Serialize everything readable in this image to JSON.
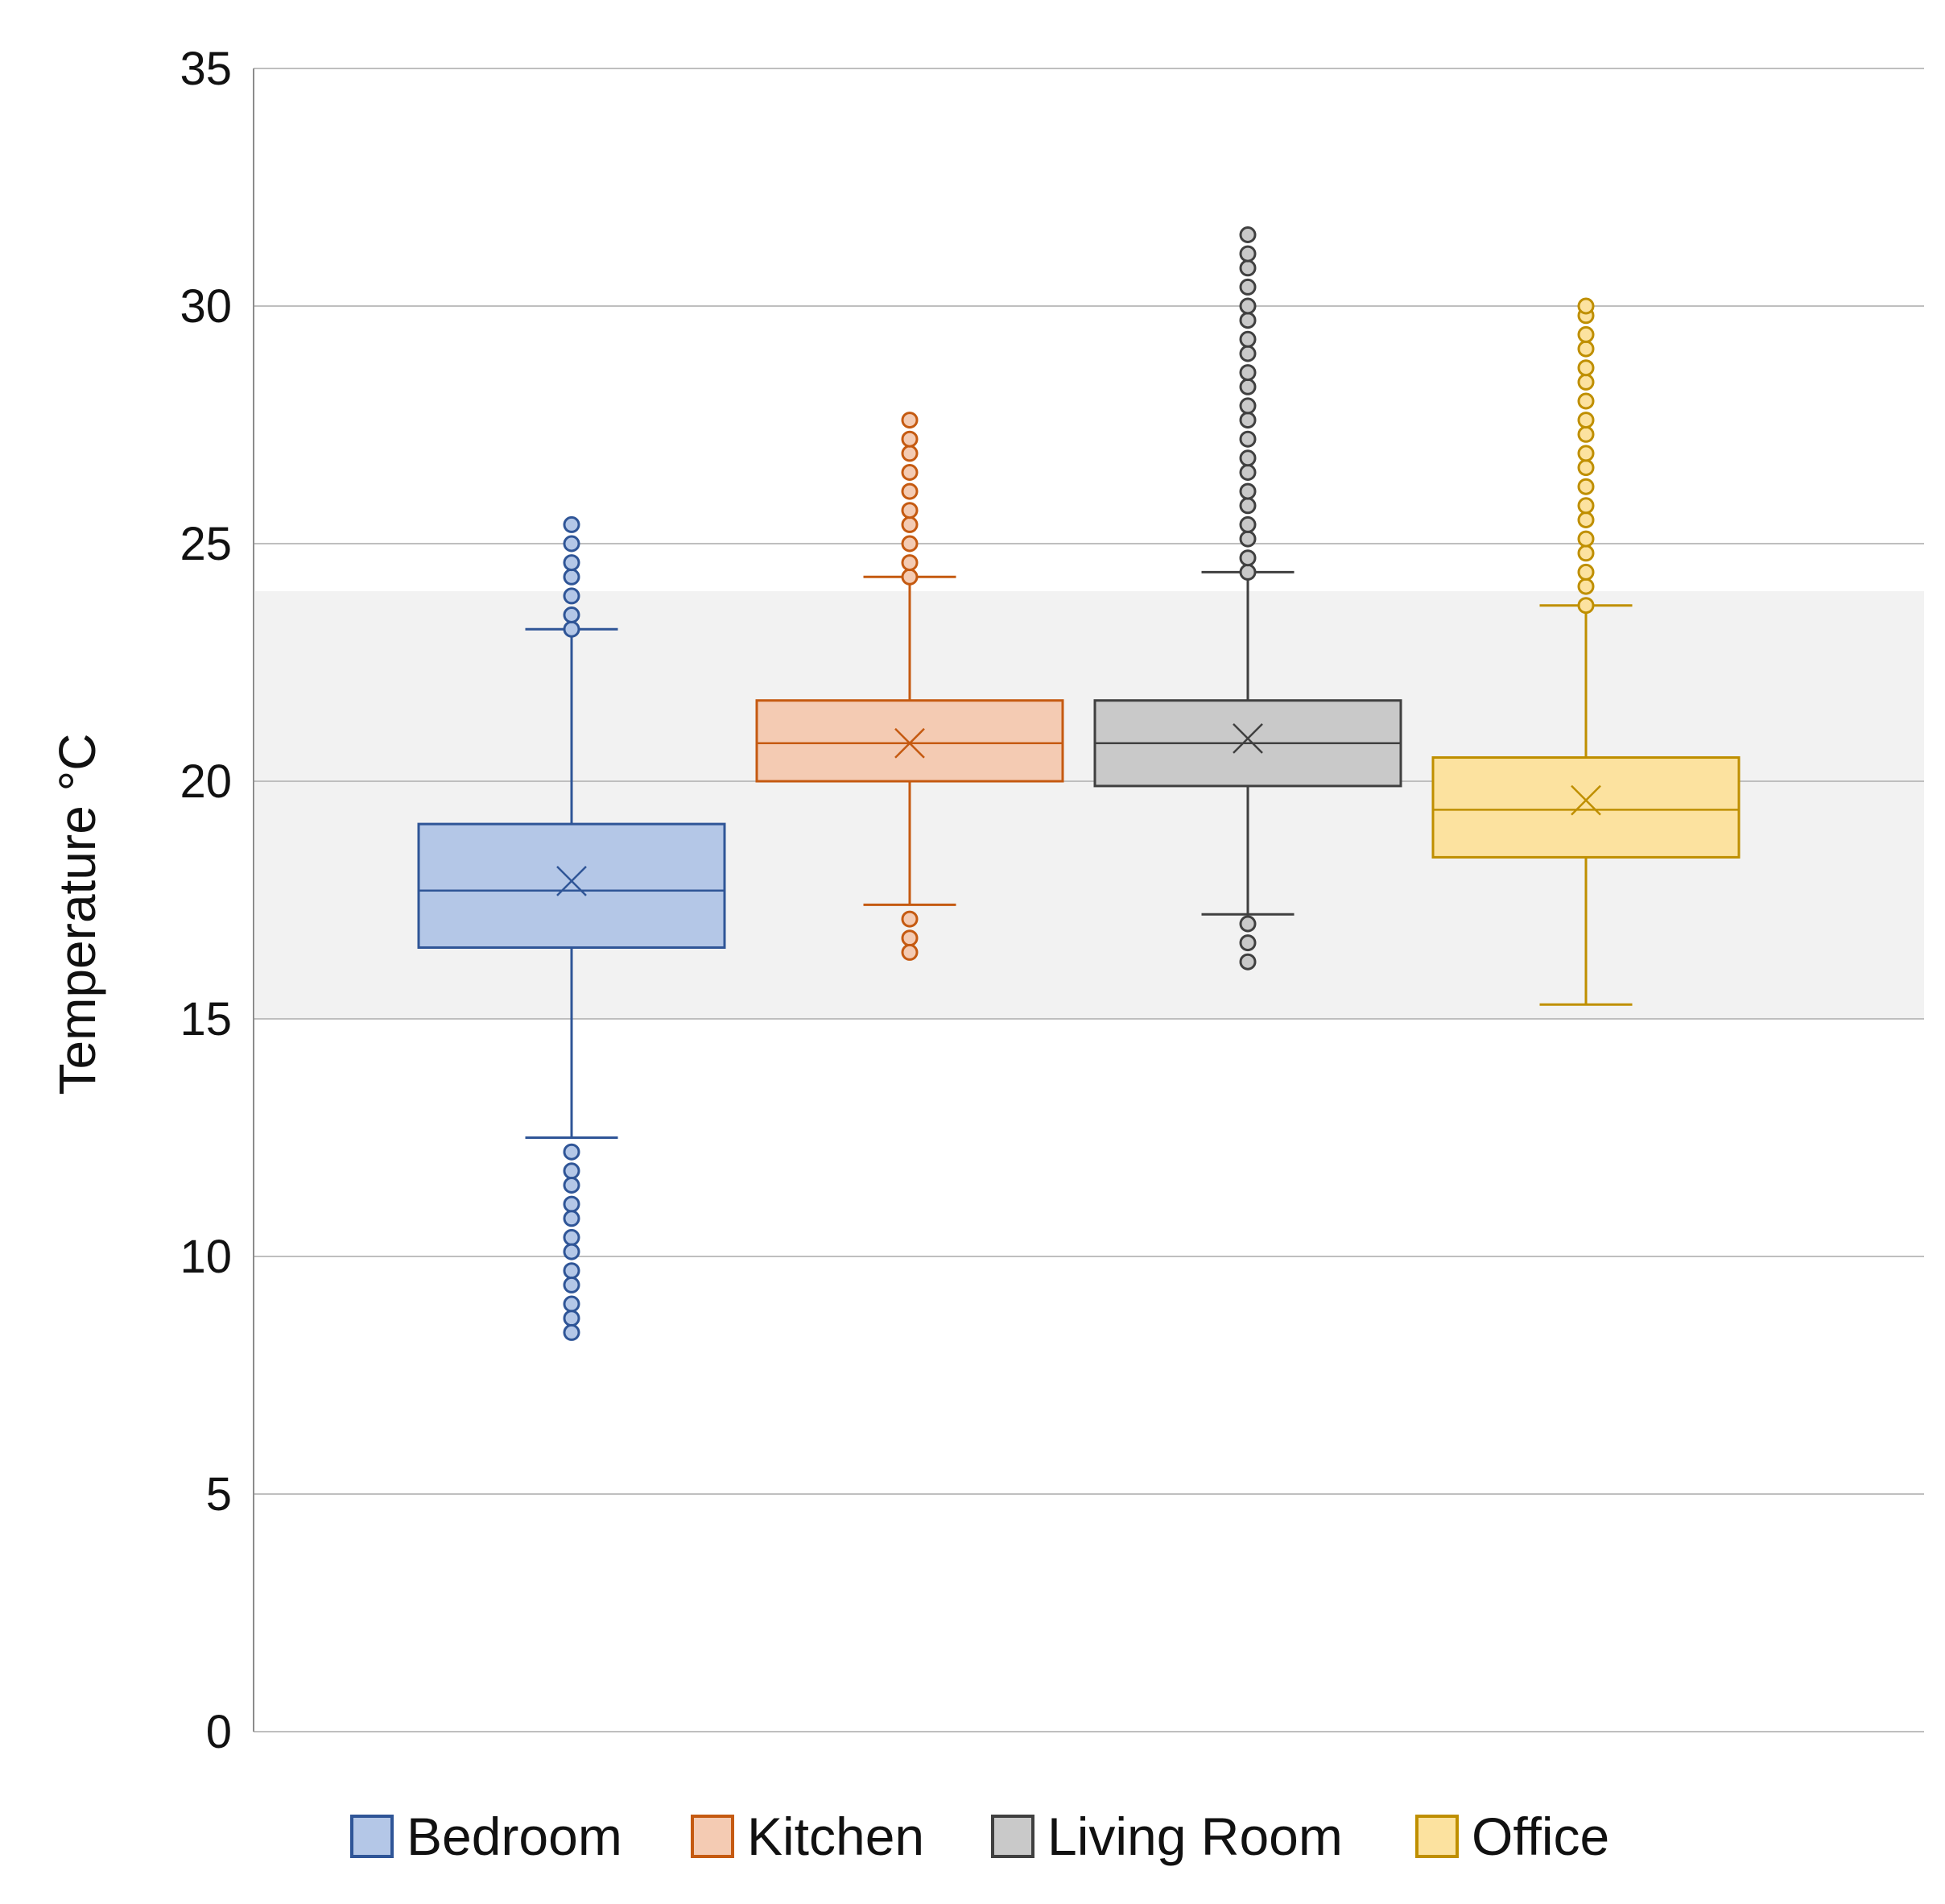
{
  "chart_data": {
    "type": "box",
    "ylabel": "Temperature °C",
    "ylim": [
      0,
      35
    ],
    "yticks": [
      0,
      5,
      10,
      15,
      20,
      25,
      30,
      35
    ],
    "grid": true,
    "shaded_band": [
      15,
      24
    ],
    "legend_position": "bottom",
    "series": [
      {
        "name": "Bedroom",
        "color": "#2f5597",
        "fill": "#b4c7e7",
        "min": 12.5,
        "q1": 16.5,
        "median": 17.7,
        "mean": 17.9,
        "q3": 19.1,
        "max": 23.2,
        "outliers_low": [
          12.2,
          11.8,
          11.5,
          11.1,
          10.8,
          10.4,
          10.1,
          9.7,
          9.4,
          9.0,
          8.7,
          8.4
        ],
        "outliers_high": [
          23.2,
          23.5,
          23.9,
          24.3,
          24.6,
          25.0,
          25.4
        ]
      },
      {
        "name": "Kitchen",
        "color": "#c55a11",
        "fill": "#f4cbb3",
        "min": 17.4,
        "q1": 20.0,
        "median": 20.8,
        "mean": 20.8,
        "q3": 21.7,
        "max": 24.3,
        "outliers_low": [
          17.1,
          16.7,
          16.4
        ],
        "outliers_high": [
          24.3,
          24.6,
          25.0,
          25.4,
          25.7,
          26.1,
          26.5,
          26.9,
          27.2,
          27.6
        ]
      },
      {
        "name": "Living Room",
        "color": "#404040",
        "fill": "#c9c9c9",
        "min": 17.2,
        "q1": 19.9,
        "median": 20.8,
        "mean": 20.9,
        "q3": 21.7,
        "max": 24.4,
        "outliers_low": [
          17.0,
          16.6,
          16.2
        ],
        "outliers_high": [
          24.4,
          24.7,
          25.1,
          25.4,
          25.8,
          26.1,
          26.5,
          26.8,
          27.2,
          27.6,
          27.9,
          28.3,
          28.6,
          29.0,
          29.3,
          29.7,
          30.0,
          30.4,
          30.8,
          31.1,
          31.5
        ]
      },
      {
        "name": "Office",
        "color": "#bf8f00",
        "fill": "#fce29f",
        "min": 15.3,
        "q1": 18.4,
        "median": 19.4,
        "mean": 19.6,
        "q3": 20.5,
        "max": 23.7,
        "outliers_low": [],
        "outliers_high": [
          23.7,
          24.1,
          24.4,
          24.8,
          25.1,
          25.5,
          25.8,
          26.2,
          26.6,
          26.9,
          27.3,
          27.6,
          28.0,
          28.4,
          28.7,
          29.1,
          29.4,
          29.8,
          30.0
        ]
      }
    ]
  }
}
